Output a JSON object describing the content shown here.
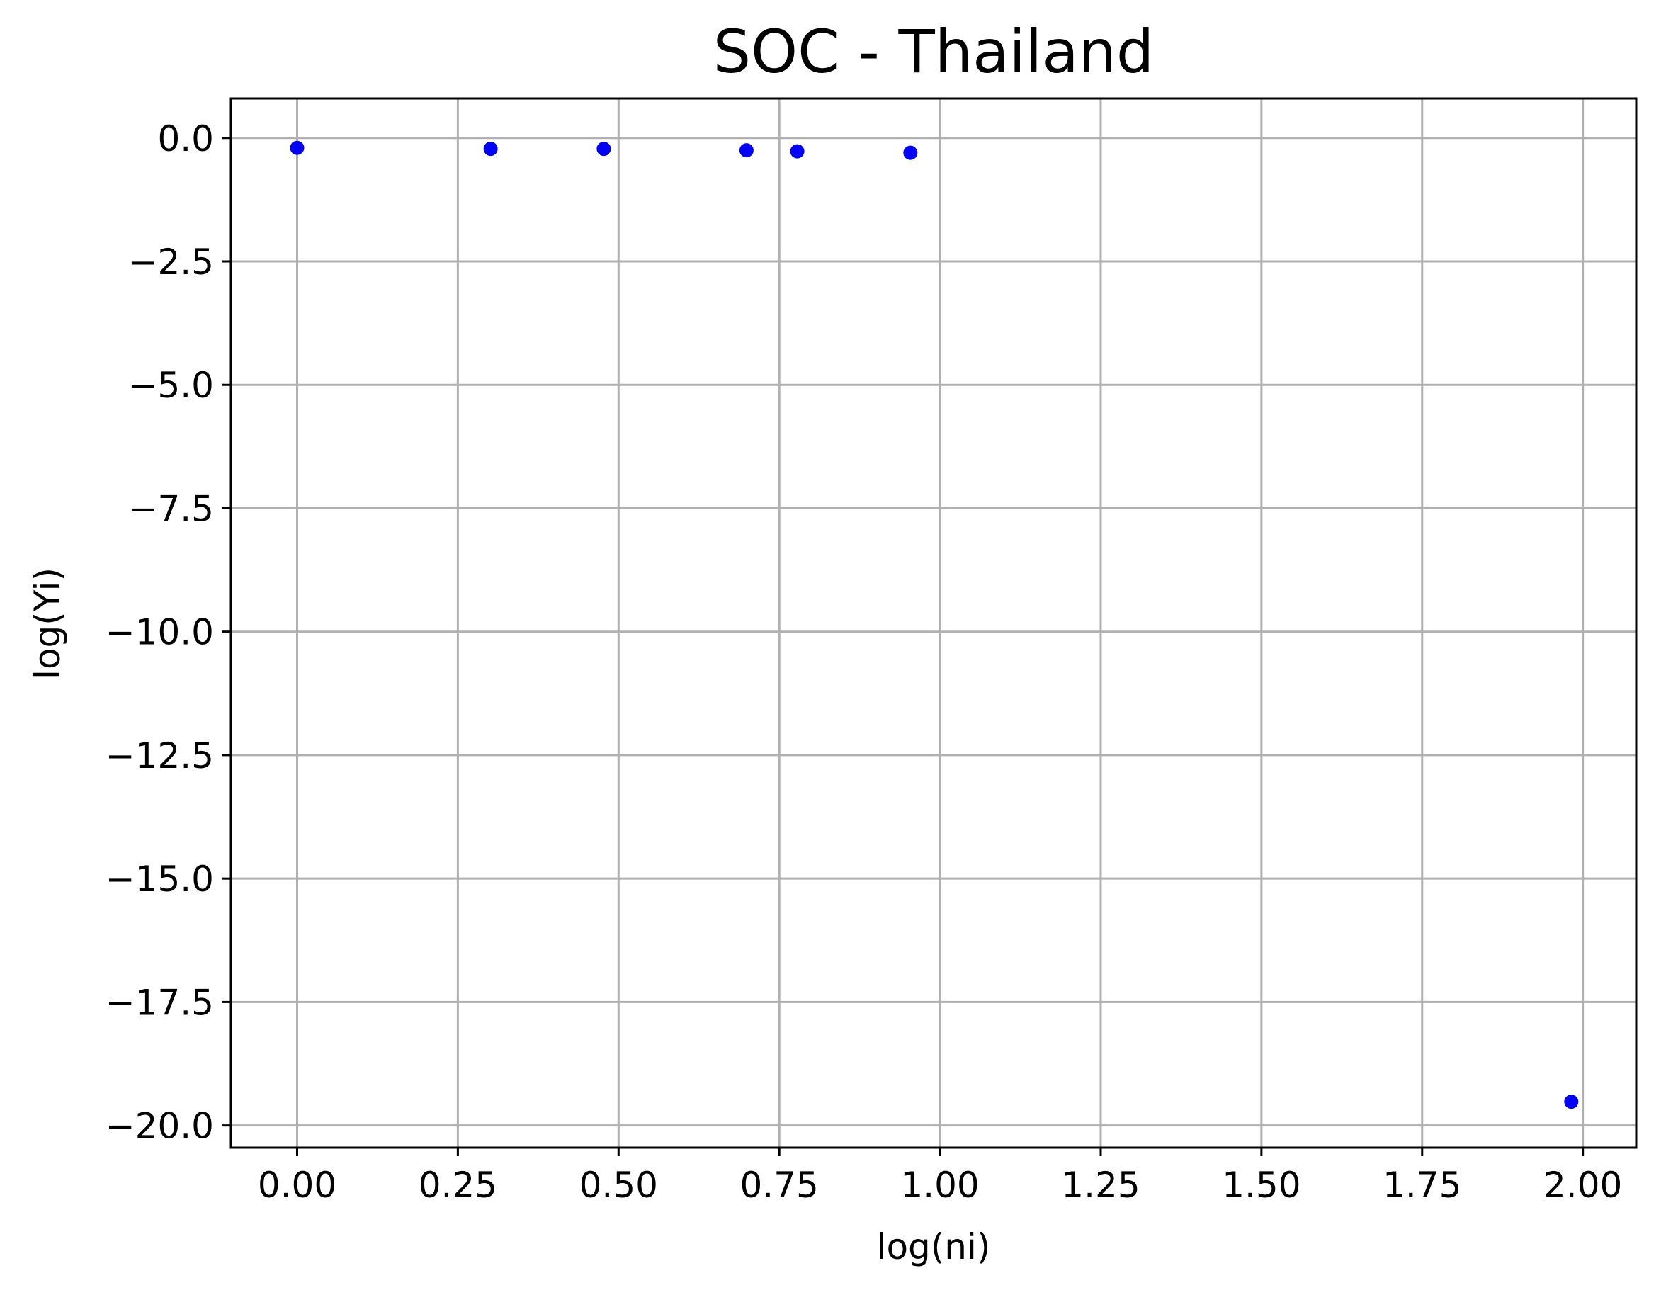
{
  "chart_data": {
    "type": "scatter",
    "title": "SOC - Thailand",
    "xlabel": "log(ni)",
    "ylabel": "log(Yi)",
    "xlim": [
      -0.103,
      2.083
    ],
    "ylim": [
      -20.45,
      0.8
    ],
    "xticks": [
      0.0,
      0.25,
      0.5,
      0.75,
      1.0,
      1.25,
      1.5,
      1.75,
      2.0
    ],
    "xtick_labels": [
      "0.00",
      "0.25",
      "0.50",
      "0.75",
      "1.00",
      "1.25",
      "1.50",
      "1.75",
      "2.00"
    ],
    "yticks": [
      0.0,
      -2.5,
      -5.0,
      -7.5,
      -10.0,
      -12.5,
      -15.0,
      -17.5,
      -20.0
    ],
    "ytick_labels": [
      "0.0",
      "−2.5",
      "−5.0",
      "−7.5",
      "−10.0",
      "−12.5",
      "−15.0",
      "−17.5",
      "−20.0"
    ],
    "grid": true,
    "series": [
      {
        "color": "#0000ff",
        "points": [
          {
            "x": 0.0,
            "y": -0.2
          },
          {
            "x": 0.301,
            "y": -0.22
          },
          {
            "x": 0.477,
            "y": -0.22
          },
          {
            "x": 0.699,
            "y": -0.25
          },
          {
            "x": 0.778,
            "y": -0.27
          },
          {
            "x": 0.954,
            "y": -0.3
          },
          {
            "x": 1.982,
            "y": -19.52
          }
        ]
      }
    ]
  }
}
